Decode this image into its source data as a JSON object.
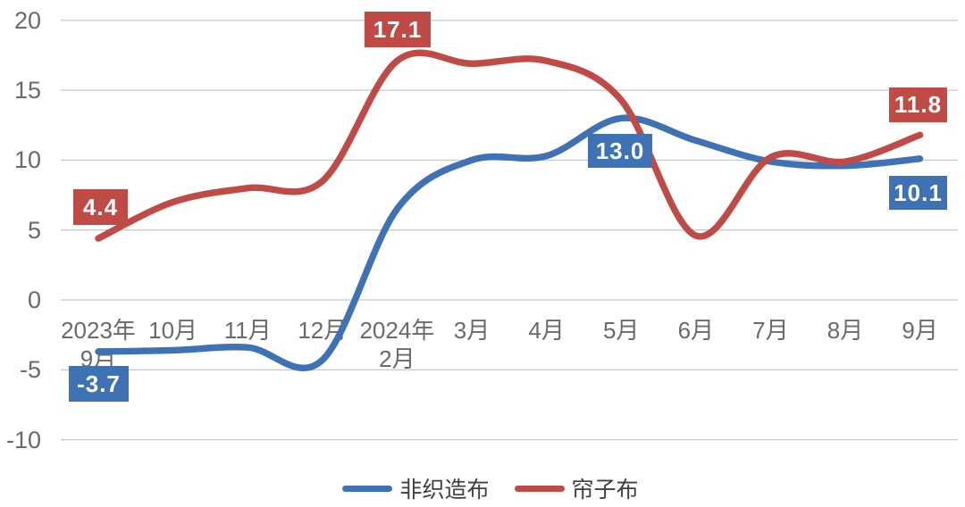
{
  "chart_data": {
    "type": "line",
    "title": "",
    "categories": [
      "2023年9月",
      "10月",
      "11月",
      "12月",
      "2024年2月",
      "3月",
      "4月",
      "5月",
      "6月",
      "7月",
      "8月",
      "9月"
    ],
    "x_labels_display": [
      [
        "2023年",
        "9月"
      ],
      [
        "10月"
      ],
      [
        "11月"
      ],
      [
        "12月"
      ],
      [
        "2024年",
        "2月"
      ],
      [
        "3月"
      ],
      [
        "4月"
      ],
      [
        "5月"
      ],
      [
        "6月"
      ],
      [
        "7月"
      ],
      [
        "8月"
      ],
      [
        "9月"
      ]
    ],
    "series": [
      {
        "name": "非织造布",
        "color": "#3F72B5",
        "values": [
          -3.7,
          -3.6,
          -3.4,
          -4.3,
          6.5,
          10.0,
          10.3,
          13.0,
          11.4,
          9.9,
          9.6,
          10.1
        ]
      },
      {
        "name": "帘子布",
        "color": "#C04A45",
        "values": [
          4.4,
          7.0,
          8.0,
          8.5,
          17.1,
          16.9,
          17.1,
          14.3,
          4.6,
          10.2,
          9.9,
          11.8
        ]
      }
    ],
    "ylim": [
      -10,
      20
    ],
    "yticks": [
      20,
      15,
      10,
      5,
      0,
      -5,
      -10
    ],
    "grid": true,
    "smooth": true,
    "legend_position": "bottom",
    "data_labels": [
      {
        "series": "帘子布",
        "category": "2023年9月",
        "text": "4.4"
      },
      {
        "series": "帘子布",
        "category": "2024年2月",
        "text": "17.1"
      },
      {
        "series": "帘子布",
        "category": "9月",
        "text": "11.8"
      },
      {
        "series": "非织造布",
        "category": "2023年9月",
        "text": "-3.7"
      },
      {
        "series": "非织造布",
        "category": "5月",
        "text": "13.0"
      },
      {
        "series": "非织造布",
        "category": "9月",
        "text": "10.1"
      }
    ]
  },
  "colors": {
    "blue_series": "#3F72B5",
    "red_series": "#C04A45",
    "gridline": "#CBCBCB",
    "axis_text": "#6A6A6A",
    "legend_text": "#404040",
    "label_text": "#FFFFFF",
    "background": "#FFFFFF"
  }
}
